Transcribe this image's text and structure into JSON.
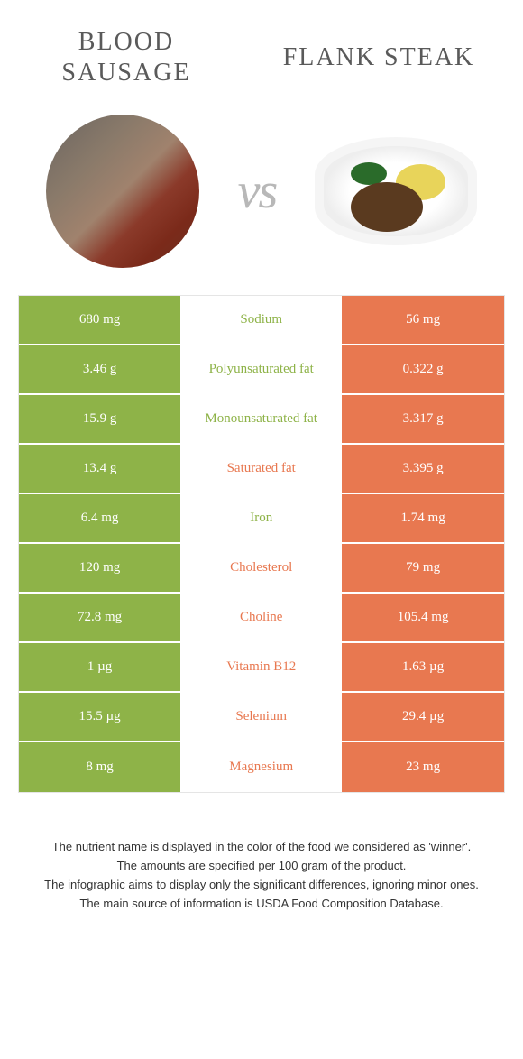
{
  "colors": {
    "green": "#8eb348",
    "orange": "#e87850",
    "mid_bg": "#ffffff"
  },
  "titles": {
    "left": "Blood sausage",
    "right": "Flank steak",
    "vs": "vs"
  },
  "rows": [
    {
      "left": "680 mg",
      "label": "Sodium",
      "right": "56 mg",
      "winner": "left"
    },
    {
      "left": "3.46 g",
      "label": "Polyunsaturated fat",
      "right": "0.322 g",
      "winner": "left"
    },
    {
      "left": "15.9 g",
      "label": "Monounsaturated fat",
      "right": "3.317 g",
      "winner": "left"
    },
    {
      "left": "13.4 g",
      "label": "Saturated fat",
      "right": "3.395 g",
      "winner": "right"
    },
    {
      "left": "6.4 mg",
      "label": "Iron",
      "right": "1.74 mg",
      "winner": "left"
    },
    {
      "left": "120 mg",
      "label": "Cholesterol",
      "right": "79 mg",
      "winner": "right"
    },
    {
      "left": "72.8 mg",
      "label": "Choline",
      "right": "105.4 mg",
      "winner": "right"
    },
    {
      "left": "1 µg",
      "label": "Vitamin B12",
      "right": "1.63 µg",
      "winner": "right"
    },
    {
      "left": "15.5 µg",
      "label": "Selenium",
      "right": "29.4 µg",
      "winner": "right"
    },
    {
      "left": "8 mg",
      "label": "Magnesium",
      "right": "23 mg",
      "winner": "right"
    }
  ],
  "footer": {
    "l1": "The nutrient name is displayed in the color of the food we considered as 'winner'.",
    "l2": "The amounts are specified per 100 gram of the product.",
    "l3": "The infographic aims to display only the significant differences, ignoring minor ones.",
    "l4": "The main source of information is USDA Food Composition Database."
  }
}
